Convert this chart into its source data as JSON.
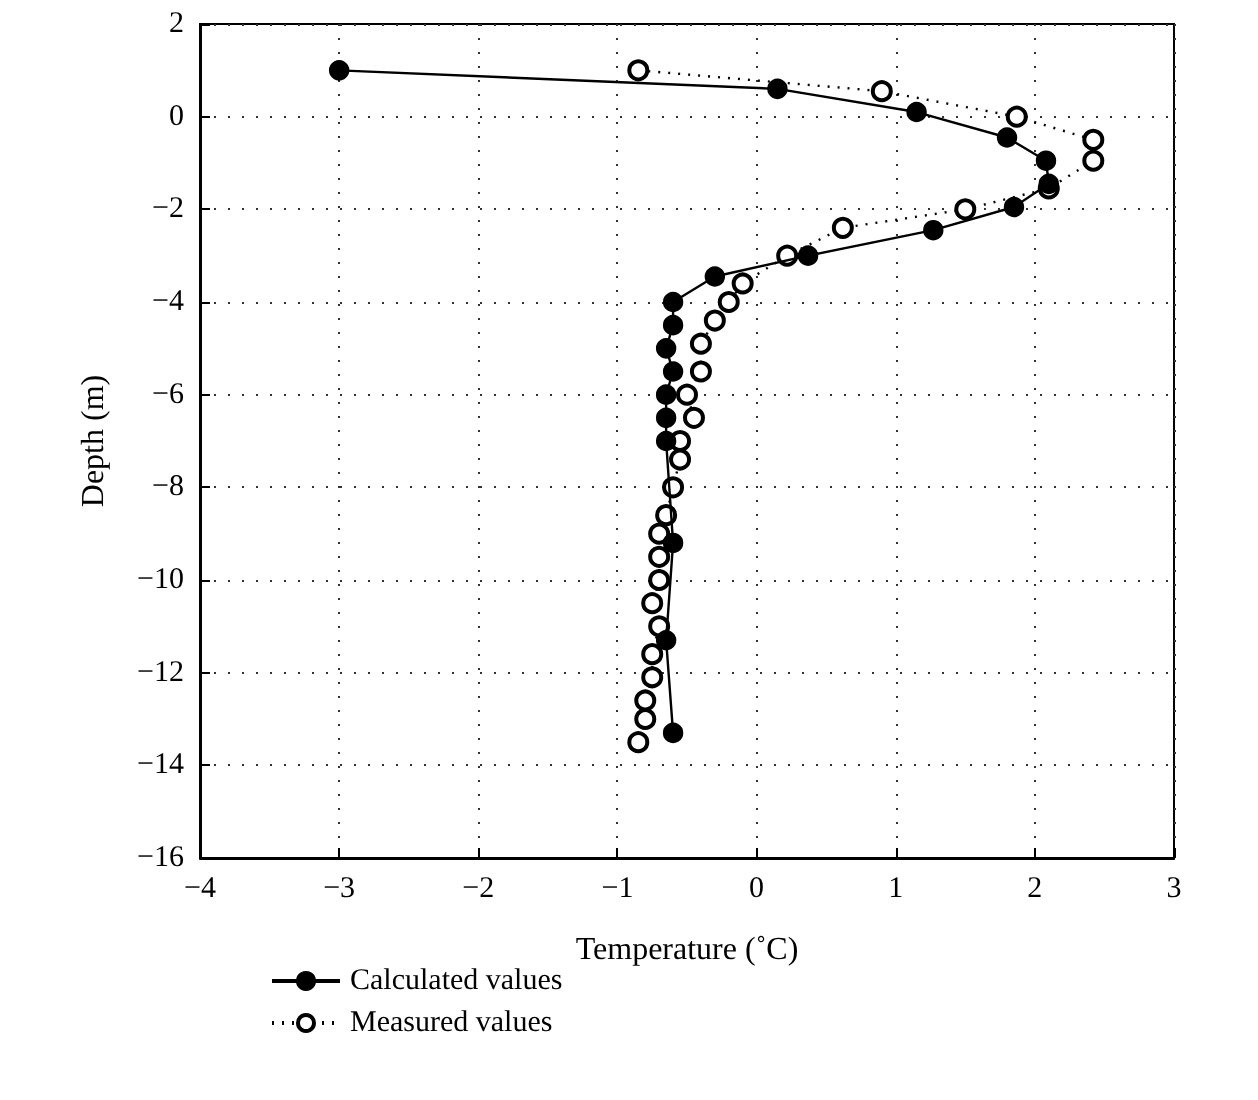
{
  "chart_data": {
    "type": "line",
    "xlabel": "Temperature (˚C)",
    "ylabel": "Depth (m)",
    "xlim": [
      -4,
      3
    ],
    "xticks": [
      -4,
      -3,
      -2,
      -1,
      0,
      1,
      2,
      3
    ],
    "ylim": [
      -16,
      2
    ],
    "yticks": [
      -16,
      -14,
      -12,
      -10,
      -8,
      -6,
      -4,
      -2,
      0,
      2
    ],
    "grid": true,
    "legend": "bottom left",
    "marker": "circle",
    "series": [
      {
        "name": "Calculated values",
        "color": "#000000",
        "line_style": "solid",
        "x": [
          -3,
          0.15,
          1.15,
          1.8,
          2.08,
          2.1,
          1.85,
          1.27,
          0.37,
          -0.3,
          -0.6,
          -0.6,
          -0.65,
          -0.6,
          -0.65,
          -0.65,
          -0.65,
          -0.6,
          -0.65,
          -0.6
        ],
        "values": [
          1,
          0.6,
          0.1,
          -0.45,
          -0.95,
          -1.45,
          -1.95,
          -2.45,
          -3.0,
          -3.45,
          -4.0,
          -4.5,
          -5.0,
          -5.5,
          -6.0,
          -6.5,
          -7.0,
          -9.2,
          -11.3,
          -13.3
        ]
      },
      {
        "name": "Measured values",
        "color": "#000000",
        "line_style": "dotted",
        "x": [
          -0.85,
          0.9,
          1.87,
          2.42,
          2.42,
          2.1,
          1.5,
          0.62,
          0.22,
          -0.1,
          -0.2,
          -0.3,
          -0.4,
          -0.4,
          -0.5,
          -0.45,
          -0.55,
          -0.55,
          -0.6,
          -0.65,
          -0.7,
          -0.7,
          -0.7,
          -0.75,
          -0.7,
          -0.75,
          -0.75,
          -0.8,
          -0.8,
          -0.85
        ],
        "values": [
          1,
          0.55,
          0,
          -0.5,
          -0.95,
          -1.55,
          -2.0,
          -2.4,
          -3.0,
          -3.6,
          -4.0,
          -4.4,
          -4.9,
          -5.5,
          -6.0,
          -6.5,
          -7.0,
          -7.4,
          -8.0,
          -8.6,
          -9.0,
          -9.5,
          -10.0,
          -10.5,
          -11.0,
          -11.6,
          -12.1,
          -12.6,
          -13.0,
          -13.5
        ]
      }
    ]
  }
}
